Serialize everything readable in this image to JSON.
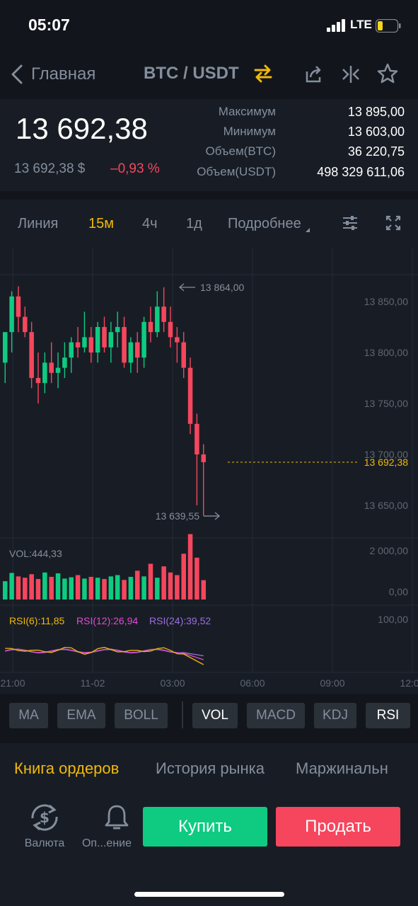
{
  "status": {
    "time": "05:07",
    "network": "LTE"
  },
  "nav": {
    "back_label": "Главная",
    "pair": "BTC / USDT",
    "icons": [
      "swap-icon",
      "share-icon",
      "compare-icon",
      "favorite-star-icon"
    ]
  },
  "ticker": {
    "last_price": "13 692,38",
    "fiat_price": "13 692,38 $",
    "change_pct": "–0,93 %",
    "stats": [
      {
        "label": "Максимум",
        "value": "13 895,00"
      },
      {
        "label": "Минимум",
        "value": "13 603,00"
      },
      {
        "label": "Объем(BTC)",
        "value": "36 220,75"
      },
      {
        "label": "Объем(USDT)",
        "value": "498 329 611,06"
      }
    ]
  },
  "intervals": {
    "items": [
      "Линия",
      "15м",
      "4ч",
      "1д",
      "Подробнее"
    ],
    "active": "15м"
  },
  "chart": {
    "high_marker": "13 864,00",
    "low_marker": "13 639,55",
    "current_price": "13 692,38",
    "price_axis": [
      "13 850,00",
      "13 800,00",
      "13 750,00",
      "13 700,00",
      "13 650,00"
    ],
    "vol_label": "VOL:444,33",
    "vol_axis": [
      "2 000,00",
      "0,00"
    ],
    "rsi6": "RSI(6):11,85",
    "rsi12": "RSI(12):26,94",
    "rsi24": "RSI(24):39,52",
    "rsi_axis": "100,00",
    "time_axis": [
      "21:00",
      "11-02",
      "03:00",
      "06:00",
      "09:00",
      "12:00"
    ],
    "colors": {
      "up": "#0ecb81",
      "down": "#f6465d",
      "accent": "#f0b90b",
      "rsi12": "#e04bd0",
      "rsi24": "#9b6fe0"
    }
  },
  "chart_data": {
    "type": "candlestick",
    "ylim": [
      13625,
      13875
    ],
    "candles": [
      [
        13790,
        13820,
        13770,
        13820
      ],
      [
        13820,
        13860,
        13800,
        13855
      ],
      [
        13855,
        13865,
        13820,
        13835
      ],
      [
        13835,
        13845,
        13815,
        13820
      ],
      [
        13820,
        13830,
        13765,
        13775
      ],
      [
        13775,
        13800,
        13750,
        13770
      ],
      [
        13770,
        13800,
        13760,
        13790
      ],
      [
        13790,
        13810,
        13770,
        13780
      ],
      [
        13780,
        13800,
        13765,
        13785
      ],
      [
        13785,
        13810,
        13775,
        13795
      ],
      [
        13795,
        13815,
        13780,
        13810
      ],
      [
        13810,
        13825,
        13795,
        13805
      ],
      [
        13805,
        13840,
        13800,
        13815
      ],
      [
        13815,
        13825,
        13790,
        13800
      ],
      [
        13800,
        13830,
        13790,
        13825
      ],
      [
        13825,
        13835,
        13800,
        13805
      ],
      [
        13805,
        13830,
        13790,
        13820
      ],
      [
        13820,
        13840,
        13805,
        13825
      ],
      [
        13825,
        13835,
        13785,
        13790
      ],
      [
        13790,
        13815,
        13780,
        13810
      ],
      [
        13810,
        13820,
        13780,
        13795
      ],
      [
        13795,
        13835,
        13785,
        13830
      ],
      [
        13830,
        13845,
        13810,
        13820
      ],
      [
        13820,
        13860,
        13815,
        13845
      ],
      [
        13845,
        13864,
        13820,
        13830
      ],
      [
        13830,
        13845,
        13805,
        13815
      ],
      [
        13815,
        13825,
        13790,
        13810
      ],
      [
        13810,
        13820,
        13775,
        13785
      ],
      [
        13785,
        13795,
        13720,
        13730
      ],
      [
        13730,
        13740,
        13650,
        13700
      ],
      [
        13700,
        13710,
        13639.55,
        13692.38
      ]
    ],
    "volume": [
      420,
      610,
      530,
      500,
      580,
      470,
      620,
      520,
      600,
      480,
      510,
      560,
      480,
      520,
      500,
      470,
      530,
      560,
      450,
      520,
      660,
      530,
      820,
      500,
      760,
      620,
      560,
      1050,
      1500,
      960,
      444.33
    ]
  },
  "indicators": {
    "items": [
      "MA",
      "EMA",
      "BOLL",
      "VOL",
      "MACD",
      "KDJ",
      "RSI"
    ],
    "active": [
      "VOL",
      "RSI"
    ]
  },
  "tabs": {
    "items": [
      "Книга ордеров",
      "История рынка",
      "Маржинальн"
    ],
    "active": "Книга ордеров"
  },
  "actions": {
    "currency_label": "Валюта",
    "alert_label": "Оп...ение",
    "buy_label": "Купить",
    "sell_label": "Продать",
    "buy_color": "#0ecb81",
    "sell_color": "#f6465d"
  }
}
